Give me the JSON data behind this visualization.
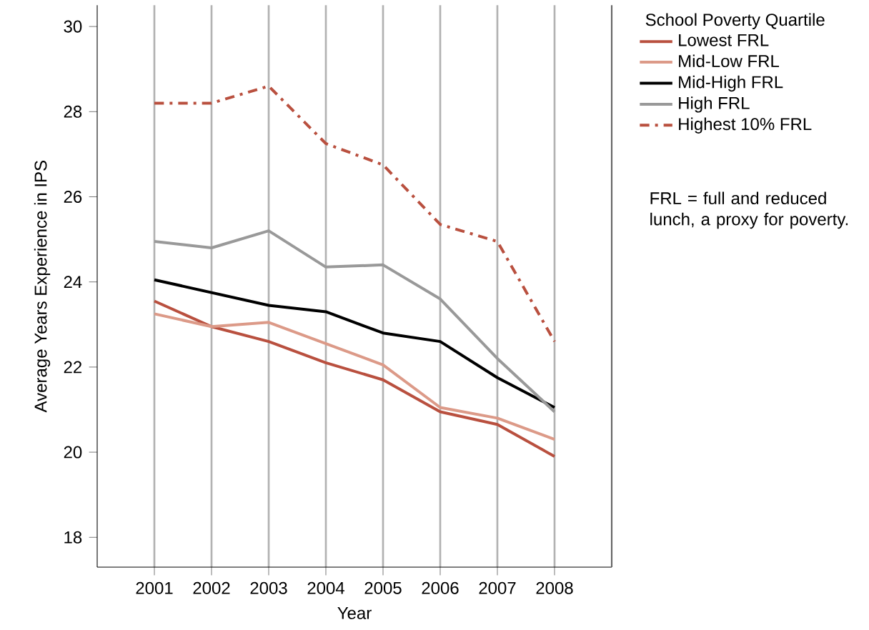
{
  "chart_data": {
    "type": "line",
    "xlabel": "Year",
    "ylabel": "Average Years Experience in IPS",
    "legend_title": "School Poverty Quartile",
    "x": [
      2001,
      2002,
      2003,
      2004,
      2005,
      2006,
      2007,
      2008
    ],
    "series": [
      {
        "name": "Lowest FRL",
        "color": "#b9503f",
        "values": [
          23.55,
          22.95,
          22.6,
          22.1,
          21.7,
          20.95,
          20.65,
          19.9
        ]
      },
      {
        "name": "Mid-Low FRL",
        "color": "#dc9a88",
        "values": [
          23.25,
          22.95,
          23.05,
          22.55,
          22.05,
          21.05,
          20.8,
          20.3
        ]
      },
      {
        "name": "Mid-High FRL",
        "color": "#000000",
        "values": [
          24.05,
          23.75,
          23.45,
          23.3,
          22.8,
          22.6,
          21.75,
          21.05
        ]
      },
      {
        "name": "High FRL",
        "color": "#999999",
        "values": [
          24.95,
          24.8,
          25.2,
          24.35,
          24.4,
          23.6,
          22.2,
          20.95
        ]
      },
      {
        "name": "Highest 10% FRL",
        "color": "#b9503f",
        "line_style": "dashed",
        "values": [
          28.2,
          28.2,
          28.6,
          27.25,
          26.75,
          25.35,
          24.95,
          22.6
        ]
      }
    ],
    "xlim": [
      2000,
      2009
    ],
    "ylim": [
      17.3,
      30.5
    ],
    "xticks": [
      2001,
      2002,
      2003,
      2004,
      2005,
      2006,
      2007,
      2008
    ],
    "yticks": [
      18,
      20,
      22,
      24,
      26,
      28,
      30
    ],
    "grid": "x",
    "legend": "top right",
    "marker": "none",
    "annotations": [
      "FRL = full and reduced lunch, a proxy for poverty."
    ]
  }
}
